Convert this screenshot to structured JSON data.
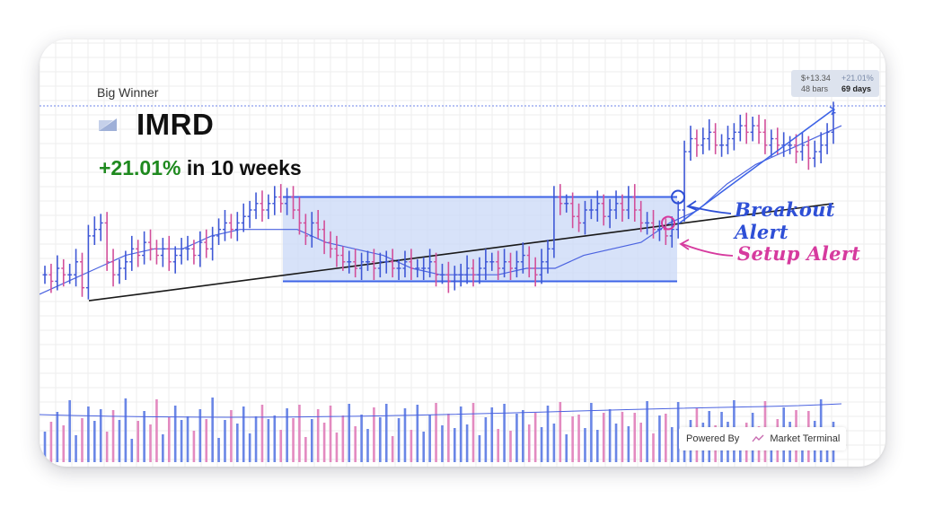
{
  "header": {
    "subtitle": "Big Winner",
    "ticker": "IMRD",
    "gain_pct": "+21.01%",
    "gain_suffix": " in 10 weeks"
  },
  "stats": {
    "price_change": "$+13.34",
    "pct_change": "+21.01%",
    "bars": "48 bars",
    "days": "69 days"
  },
  "annotations": {
    "breakout_label": "Breakout Alert",
    "setup_label": "Setup Alert"
  },
  "footer": {
    "powered_by": "Powered By",
    "brand": "Market Terminal"
  },
  "colors": {
    "up_candle": "#3f58d6",
    "down_candle": "#d24f9a",
    "range_box": "#c9d8f7",
    "moving_average_short": "#4b63e0",
    "moving_average_long": "#1a1a1a",
    "breakout_accent": "#2e4fd6",
    "setup_accent": "#d63a9e",
    "gain_text": "#1f8a1f"
  },
  "chart_data": {
    "type": "candlestick",
    "title": "IMRD",
    "grid": true,
    "axis_labels_visible": false,
    "series": [
      {
        "name": "price",
        "values": [
          60,
          59,
          61,
          60,
          60,
          62,
          58,
          66,
          67,
          68,
          62,
          60,
          61,
          62,
          64,
          63,
          65,
          64,
          63,
          64,
          62,
          63,
          64,
          64,
          63,
          65,
          64,
          66,
          67,
          68,
          67,
          68,
          69,
          70,
          71,
          70,
          71,
          72,
          71,
          72,
          70,
          68,
          66,
          68,
          67,
          65,
          64,
          63,
          62,
          62,
          61,
          62,
          62,
          61,
          62,
          62,
          61,
          61,
          62,
          61,
          61,
          61,
          62,
          60,
          60,
          59,
          60,
          60,
          61,
          60,
          61,
          62,
          62,
          61,
          62,
          61,
          62,
          63,
          61,
          60,
          62,
          64,
          72,
          71,
          71,
          69,
          68,
          70,
          70,
          71,
          69,
          70,
          71,
          70,
          72,
          70,
          68,
          68,
          67,
          67,
          66,
          67,
          70,
          79,
          81,
          80,
          81,
          82,
          80,
          80,
          81,
          82,
          83,
          82,
          83,
          82,
          80,
          81,
          80,
          80,
          80,
          79,
          80,
          78,
          79,
          80,
          82,
          85
        ]
      },
      {
        "name": "moving_average_short",
        "values": [
          57,
          59,
          61,
          63,
          64,
          64,
          66,
          67,
          67,
          67,
          65,
          64,
          63,
          61,
          60,
          60,
          60,
          61,
          61,
          63,
          64,
          65,
          68,
          70,
          74,
          77,
          79,
          81,
          83
        ]
      },
      {
        "name": "moving_average_long",
        "values": [
          56,
          57,
          58,
          59,
          60,
          61,
          62,
          63,
          64,
          65,
          66,
          67,
          68,
          69,
          70,
          71
        ]
      }
    ],
    "levels": {
      "range_high": 72,
      "range_low": 59,
      "breakout_price": 72,
      "setup_price": 68
    }
  }
}
